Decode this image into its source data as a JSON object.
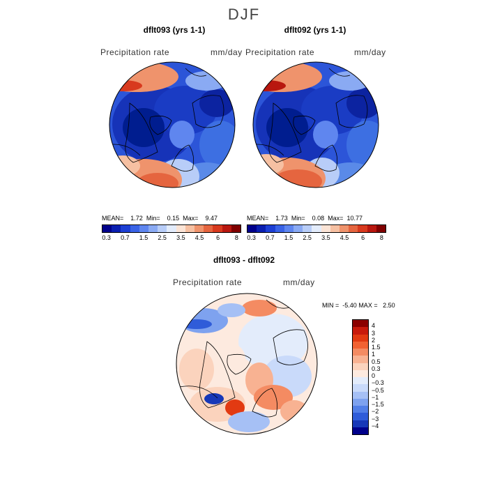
{
  "season": "DJF",
  "panels": [
    {
      "title": "dflt093 (yrs 1-1)",
      "variable": "Precipitation rate",
      "units": "mm/day",
      "stats": {
        "mean_label": "MEAN=",
        "mean": "1.72",
        "min_label": "Min=",
        "min": "0.15",
        "max_label": "Max=",
        "max": "9.47"
      }
    },
    {
      "title": "dflt092 (yrs 1-1)",
      "variable": "Precipitation rate",
      "units": "mm/day",
      "stats": {
        "mean_label": "MEAN=",
        "mean": "1.73",
        "min_label": "Min=",
        "min": "0.08",
        "max_label": "Max=",
        "max": "10.77"
      }
    }
  ],
  "diff_panel": {
    "title": "dflt093 - dflt092",
    "variable": "Precipitation rate",
    "units": "mm/day",
    "stats": {
      "min_label": "MIN =",
      "min": "-5.40",
      "max_label": "MAX =",
      "max": "2.50"
    }
  },
  "colorbar_top": {
    "colors": [
      "#00008b",
      "#0a1fb0",
      "#1d3fd4",
      "#3a63e6",
      "#5f86ef",
      "#8aaaf3",
      "#b8cdf8",
      "#e3ecfb",
      "#fbe4d6",
      "#f6c0a2",
      "#ef936c",
      "#e5653f",
      "#d83a1e",
      "#b8170f",
      "#800000"
    ],
    "ticks": [
      "0.3",
      "0.7",
      "1.5",
      "2.5",
      "3.5",
      "4.5",
      "6",
      "8"
    ]
  },
  "colorbar_diff": {
    "colors": [
      "#8b0000",
      "#c81a0c",
      "#e23a12",
      "#f26232",
      "#f48b62",
      "#f8b292",
      "#fbd3bd",
      "#fdeadf",
      "#e3ecfb",
      "#c9dafa",
      "#a6c0f5",
      "#7ea2ef",
      "#527fe7",
      "#2f5cd9",
      "#1738b8",
      "#00008b"
    ],
    "ticks": [
      "4",
      "3",
      "2",
      "1.5",
      "1",
      "0.5",
      "0.3",
      "0",
      "−0.3",
      "−0.5",
      "−1",
      "−1.5",
      "−2",
      "−3",
      "−4"
    ]
  }
}
